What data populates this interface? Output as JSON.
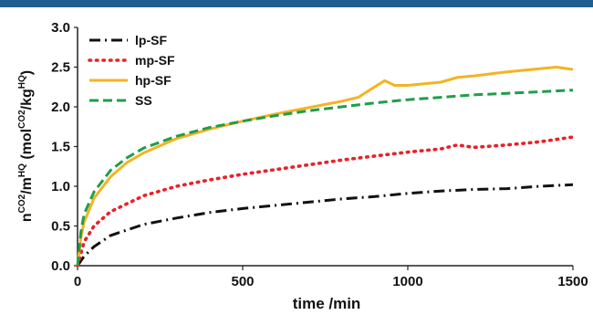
{
  "chart_data": {
    "type": "line",
    "xlabel": "time /min",
    "ylabel": {
      "main": "n",
      "sup1": "CO2",
      "mid": "/m",
      "sup2": "HQ",
      "open": " (mol",
      "sup3": "CO2",
      "mid2": "/kg",
      "sup4": "HQ",
      "close": ")"
    },
    "xlim": [
      0,
      1500
    ],
    "ylim": [
      0,
      3.0
    ],
    "xticks": [
      "0",
      "500",
      "1000",
      "1500"
    ],
    "yticks": [
      "0.0",
      "0.5",
      "1.0",
      "1.5",
      "2.0",
      "2.5",
      "3.0"
    ],
    "grid": false,
    "legend_position": "top-left",
    "series": [
      {
        "name": "lp-SF",
        "color": "#111111",
        "dash": "dashdot",
        "x": [
          0,
          20,
          50,
          100,
          200,
          300,
          400,
          500,
          600,
          700,
          800,
          900,
          1000,
          1100,
          1200,
          1300,
          1400,
          1450,
          1500
        ],
        "y": [
          0,
          0.12,
          0.24,
          0.38,
          0.52,
          0.6,
          0.67,
          0.72,
          0.76,
          0.8,
          0.84,
          0.87,
          0.91,
          0.94,
          0.96,
          0.97,
          1.0,
          1.01,
          1.02
        ]
      },
      {
        "name": "mp-SF",
        "color": "#e8212a",
        "dash": "dotted",
        "x": [
          0,
          20,
          50,
          100,
          200,
          300,
          400,
          500,
          600,
          700,
          800,
          900,
          1000,
          1100,
          1150,
          1200,
          1300,
          1400,
          1500
        ],
        "y": [
          0,
          0.3,
          0.5,
          0.68,
          0.88,
          1.0,
          1.08,
          1.15,
          1.21,
          1.27,
          1.33,
          1.38,
          1.43,
          1.47,
          1.52,
          1.49,
          1.52,
          1.56,
          1.62
        ]
      },
      {
        "name": "hp-SF",
        "color": "#f4b323",
        "dash": "solid",
        "x": [
          0,
          10,
          20,
          50,
          100,
          150,
          200,
          300,
          400,
          500,
          600,
          700,
          800,
          850,
          880,
          930,
          960,
          1000,
          1100,
          1150,
          1200,
          1300,
          1400,
          1450,
          1500
        ],
        "y": [
          0,
          0.35,
          0.55,
          0.85,
          1.12,
          1.3,
          1.42,
          1.6,
          1.72,
          1.82,
          1.91,
          1.99,
          2.07,
          2.12,
          2.2,
          2.33,
          2.27,
          2.27,
          2.31,
          2.37,
          2.39,
          2.44,
          2.48,
          2.5,
          2.47
        ]
      },
      {
        "name": "SS",
        "color": "#1f9e4a",
        "dash": "dashed",
        "x": [
          0,
          10,
          20,
          50,
          100,
          150,
          200,
          300,
          400,
          500,
          600,
          700,
          800,
          900,
          1000,
          1100,
          1200,
          1300,
          1400,
          1500
        ],
        "y": [
          0,
          0.42,
          0.65,
          0.93,
          1.2,
          1.36,
          1.48,
          1.63,
          1.74,
          1.82,
          1.89,
          1.95,
          2.0,
          2.05,
          2.09,
          2.12,
          2.15,
          2.17,
          2.19,
          2.21
        ]
      }
    ]
  }
}
